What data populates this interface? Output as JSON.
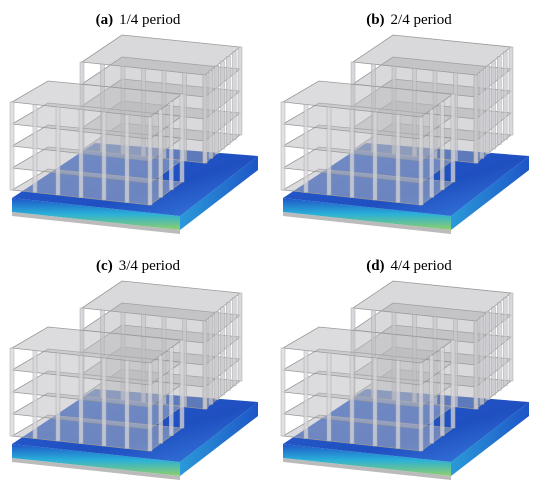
{
  "panels": [
    {
      "letter": "(a)",
      "caption": "1/4 period"
    },
    {
      "letter": "(b)",
      "caption": "2/4 period"
    },
    {
      "letter": "(c)",
      "caption": "3/4 period"
    },
    {
      "letter": "(d)",
      "caption": "4/4 period"
    }
  ]
}
